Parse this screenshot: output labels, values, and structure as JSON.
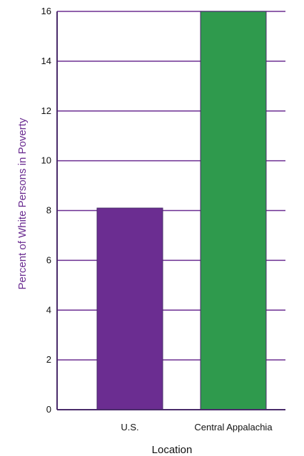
{
  "chart_data": {
    "type": "bar",
    "categories": [
      "U.S.",
      "Central Appalachia"
    ],
    "values": [
      8.1,
      16
    ],
    "title": "",
    "xlabel": "Location",
    "ylabel": "Percent of White Persons in Poverty",
    "ylim": [
      0,
      16
    ],
    "y_ticks": [
      "0",
      "2",
      "4",
      "6",
      "8",
      "10",
      "12",
      "14",
      "16"
    ],
    "grid": true,
    "legend": "none",
    "colors": {
      "bars": [
        "#6b2d91",
        "#2f9a4d"
      ],
      "axis": "#4a2b6a",
      "grid": "#6b2d91",
      "y_title": "#6b2d91",
      "text": "#111111"
    }
  }
}
